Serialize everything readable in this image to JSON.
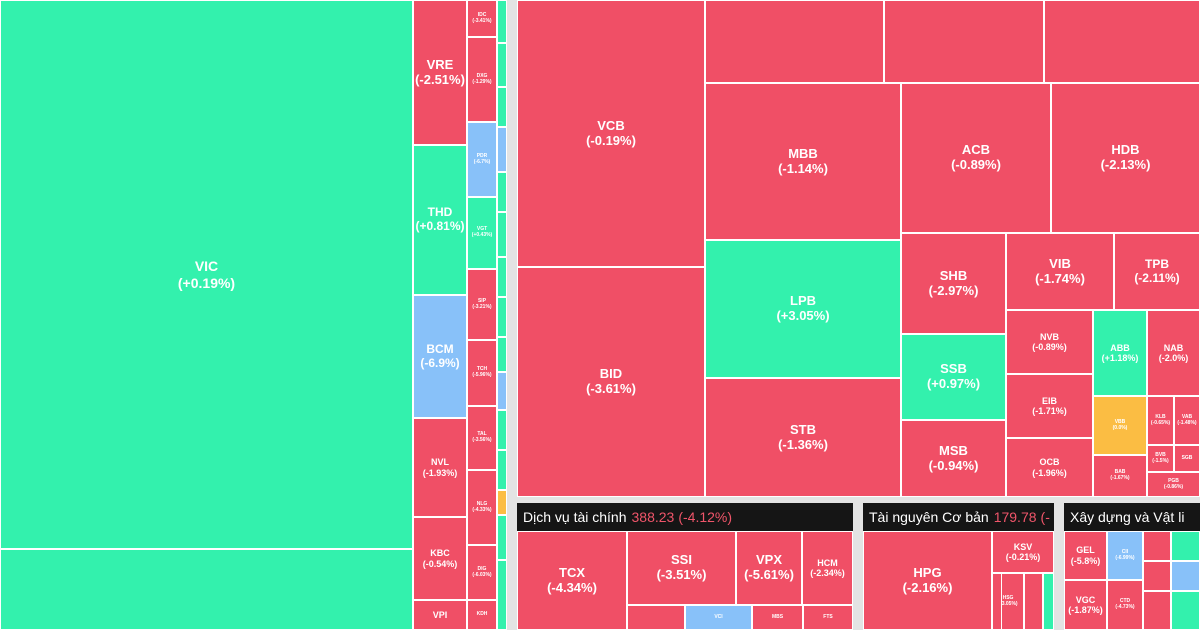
{
  "colors": {
    "down": "#f04f66",
    "up": "#33f1ad",
    "floor": "#88c1f9",
    "flat": "#fbbd43",
    "header_bg": "#151515",
    "header_value": "#f0556a"
  },
  "sectors": [
    {
      "name": "Dịch vụ tài chính",
      "value": "388.23",
      "change": "(-4.12%)"
    },
    {
      "name": "Tài nguyên Cơ bản",
      "value": "179.78",
      "change": "(-"
    },
    {
      "name": "Xây dựng và Vật li",
      "value": "",
      "change": ""
    }
  ],
  "chart_data": {
    "type": "treemap",
    "title": "",
    "tiles": [
      {
        "ticker": "VIC",
        "change_pct": 0.19,
        "label": "(+0.19%)",
        "status": "up"
      },
      {
        "ticker": "",
        "change_pct": null,
        "label": "",
        "status": "up"
      },
      {
        "ticker": "VRE",
        "change_pct": -2.51,
        "label": "(-2.51%)",
        "status": "down"
      },
      {
        "ticker": "THD",
        "change_pct": 0.81,
        "label": "(+0.81%)",
        "status": "up"
      },
      {
        "ticker": "BCM",
        "change_pct": -6.9,
        "label": "(-6.9%)",
        "status": "floor"
      },
      {
        "ticker": "NVL",
        "change_pct": -1.93,
        "label": "(-1.93%)",
        "status": "down"
      },
      {
        "ticker": "KBC",
        "change_pct": -0.54,
        "label": "(-0.54%)",
        "status": "down"
      },
      {
        "ticker": "VPI",
        "change_pct": null,
        "label": "",
        "status": "down"
      },
      {
        "ticker": "IDC",
        "change_pct": -3.41,
        "label": "(-3.41%)",
        "status": "down"
      },
      {
        "ticker": "DXG",
        "change_pct": -1.29,
        "label": "(-1.29%)",
        "status": "down"
      },
      {
        "ticker": "PDR",
        "change_pct": -6.7,
        "label": "(-6.7%)",
        "status": "floor"
      },
      {
        "ticker": "VGT",
        "change_pct": 0.43,
        "label": "(+0.43%)",
        "status": "up"
      },
      {
        "ticker": "SIP",
        "change_pct": -3.21,
        "label": "(-3.21%)",
        "status": "down"
      },
      {
        "ticker": "TCH",
        "change_pct": -5.96,
        "label": "(-5.96%)",
        "status": "down"
      },
      {
        "ticker": "TAL",
        "change_pct": -3.56,
        "label": "(-3.56%)",
        "status": "down"
      },
      {
        "ticker": "NLG",
        "change_pct": -4.33,
        "label": "(-4.33%)",
        "status": "down"
      },
      {
        "ticker": "DIG",
        "change_pct": -6.03,
        "label": "(-6.03%)",
        "status": "down"
      },
      {
        "ticker": "KDH",
        "change_pct": null,
        "label": "",
        "status": "down"
      },
      {
        "ticker": "VCB",
        "change_pct": -0.19,
        "label": "(-0.19%)",
        "status": "down"
      },
      {
        "ticker": "BID",
        "change_pct": -3.61,
        "label": "(-3.61%)",
        "status": "down"
      },
      {
        "ticker": "MBB",
        "change_pct": -1.14,
        "label": "(-1.14%)",
        "status": "down"
      },
      {
        "ticker": "LPB",
        "change_pct": 3.05,
        "label": "(+3.05%)",
        "status": "up"
      },
      {
        "ticker": "STB",
        "change_pct": -1.36,
        "label": "(-1.36%)",
        "status": "down"
      },
      {
        "ticker": "ACB",
        "change_pct": -0.89,
        "label": "(-0.89%)",
        "status": "down"
      },
      {
        "ticker": "HDB",
        "change_pct": -2.13,
        "label": "(-2.13%)",
        "status": "down"
      },
      {
        "ticker": "SHB",
        "change_pct": -2.97,
        "label": "(-2.97%)",
        "status": "down"
      },
      {
        "ticker": "SSB",
        "change_pct": 0.97,
        "label": "(+0.97%)",
        "status": "up"
      },
      {
        "ticker": "MSB",
        "change_pct": -0.94,
        "label": "(-0.94%)",
        "status": "down"
      },
      {
        "ticker": "VIB",
        "change_pct": -1.74,
        "label": "(-1.74%)",
        "status": "down"
      },
      {
        "ticker": "TPB",
        "change_pct": -2.11,
        "label": "(-2.11%)",
        "status": "down"
      },
      {
        "ticker": "NVB",
        "change_pct": -0.89,
        "label": "(-0.89%)",
        "status": "down"
      },
      {
        "ticker": "EIB",
        "change_pct": -1.71,
        "label": "(-1.71%)",
        "status": "down"
      },
      {
        "ticker": "OCB",
        "change_pct": -1.96,
        "label": "(-1.96%)",
        "status": "down"
      },
      {
        "ticker": "ABB",
        "change_pct": 1.18,
        "label": "(+1.18%)",
        "status": "up"
      },
      {
        "ticker": "NAB",
        "change_pct": -2.0,
        "label": "(-2.0%)",
        "status": "down"
      },
      {
        "ticker": "VBB",
        "change_pct": 0.0,
        "label": "(0.0%)",
        "status": "flat"
      },
      {
        "ticker": "KLB",
        "change_pct": -0.65,
        "label": "(-0.65%)",
        "status": "down"
      },
      {
        "ticker": "VAB",
        "change_pct": -1.48,
        "label": "(-1.48%)",
        "status": "down"
      },
      {
        "ticker": "BVB",
        "change_pct": -1.5,
        "label": "(-1.5%)",
        "status": "down"
      },
      {
        "ticker": "SGB",
        "change_pct": null,
        "label": "",
        "status": "down"
      },
      {
        "ticker": "BAB",
        "change_pct": -1.67,
        "label": "(-1.67%)",
        "status": "down"
      },
      {
        "ticker": "PGB",
        "change_pct": -0.86,
        "label": "(-0.86%)",
        "status": "down"
      },
      {
        "ticker": "TCX",
        "change_pct": -4.34,
        "label": "(-4.34%)",
        "status": "down"
      },
      {
        "ticker": "SSI",
        "change_pct": -3.51,
        "label": "(-3.51%)",
        "status": "down"
      },
      {
        "ticker": "VPX",
        "change_pct": -5.61,
        "label": "(-5.61%)",
        "status": "down"
      },
      {
        "ticker": "HCM",
        "change_pct": -2.34,
        "label": "(-2.34%)",
        "status": "down"
      },
      {
        "ticker": "VCI",
        "change_pct": null,
        "label": "",
        "status": "floor"
      },
      {
        "ticker": "MBS",
        "change_pct": null,
        "label": "",
        "status": "down"
      },
      {
        "ticker": "FTS",
        "change_pct": null,
        "label": "",
        "status": "down"
      },
      {
        "ticker": "HPG",
        "change_pct": -2.16,
        "label": "(-2.16%)",
        "status": "down"
      },
      {
        "ticker": "KSV",
        "change_pct": -0.21,
        "label": "(-0.21%)",
        "status": "down"
      },
      {
        "ticker": "HSG",
        "change_pct": -3.05,
        "label": "(-3.05%)",
        "status": "down"
      },
      {
        "ticker": "GEL",
        "change_pct": -5.8,
        "label": "(-5.8%)",
        "status": "down"
      },
      {
        "ticker": "CII",
        "change_pct": -6.99,
        "label": "(-6.99%)",
        "status": "floor"
      },
      {
        "ticker": "VGC",
        "change_pct": -1.87,
        "label": "(-1.87%)",
        "status": "down"
      },
      {
        "ticker": "CTD",
        "change_pct": -4.73,
        "label": "(-4.73%)",
        "status": "down"
      }
    ]
  }
}
